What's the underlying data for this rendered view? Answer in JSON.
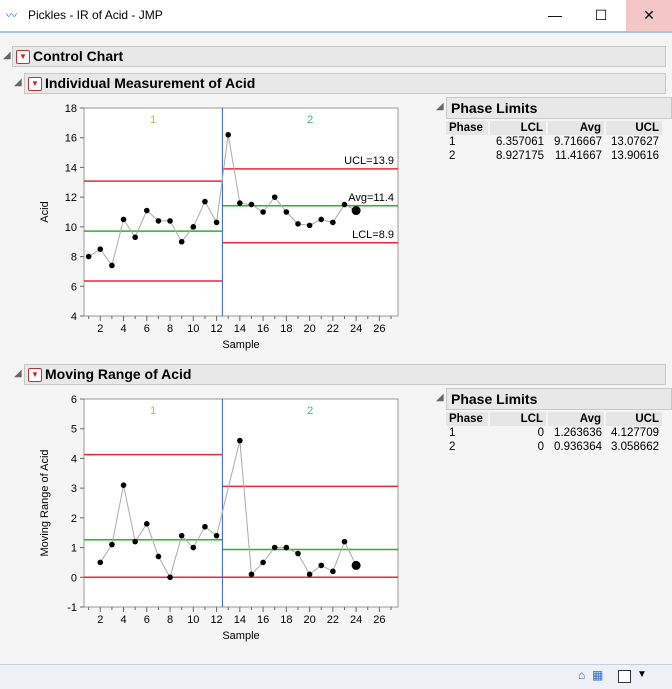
{
  "window": {
    "title": "Pickles - IR of Acid - JMP",
    "minimize": "—",
    "maximize": "☐",
    "close": "✕"
  },
  "outline": {
    "control_chart": "Control Chart",
    "individual": "Individual Measurement of Acid",
    "moving_range": "Moving Range of Acid"
  },
  "colors": {
    "limit": "#e8283c",
    "center": "#22b822",
    "phase_divider": "#2f5fd8",
    "phase1_label": "#9acd32",
    "phase2_label": "#3cb371"
  },
  "chart_data": [
    {
      "type": "line",
      "ylabel": "Acid",
      "xlabel": "Sample",
      "ylim": [
        4,
        18
      ],
      "yticks": [
        4,
        6,
        8,
        10,
        12,
        14,
        16,
        18
      ],
      "xlim": [
        0.6,
        27.6
      ],
      "xticks": [
        2,
        4,
        6,
        8,
        10,
        12,
        14,
        16,
        18,
        20,
        22,
        24,
        26
      ],
      "phase_labels": [
        "1",
        "2"
      ],
      "phase_boundary": 12.5,
      "x": [
        1,
        2,
        3,
        4,
        5,
        6,
        7,
        8,
        9,
        10,
        11,
        12,
        13,
        14,
        15,
        16,
        17,
        18,
        19,
        20,
        21,
        22,
        23,
        24
      ],
      "values": [
        8.0,
        8.5,
        7.4,
        10.5,
        9.3,
        11.1,
        10.4,
        10.4,
        9.0,
        10.0,
        11.7,
        10.3,
        16.2,
        11.6,
        11.5,
        11.0,
        12.0,
        11.0,
        10.2,
        10.1,
        10.5,
        10.3,
        11.5,
        11.1
      ],
      "limits": [
        {
          "lcl": 6.357061,
          "avg": 9.716667,
          "ucl": 13.07627
        },
        {
          "lcl": 8.927175,
          "avg": 11.41667,
          "ucl": 13.90616
        }
      ],
      "annotations": [
        "UCL=13.9",
        "Avg=11.4",
        "LCL=8.9"
      ]
    },
    {
      "type": "line",
      "ylabel": "Moving Range of Acid",
      "xlabel": "Sample",
      "ylim": [
        -1,
        6
      ],
      "yticks": [
        -1,
        0,
        1,
        2,
        3,
        4,
        5,
        6
      ],
      "xlim": [
        0.6,
        27.6
      ],
      "xticks": [
        2,
        4,
        6,
        8,
        10,
        12,
        14,
        16,
        18,
        20,
        22,
        24,
        26
      ],
      "phase_labels": [
        "1",
        "2"
      ],
      "phase_boundary": 12.5,
      "x": [
        2,
        3,
        4,
        5,
        6,
        7,
        8,
        9,
        10,
        11,
        12,
        14,
        15,
        16,
        17,
        18,
        19,
        20,
        21,
        22,
        23,
        24
      ],
      "values": [
        0.5,
        1.1,
        3.1,
        1.2,
        1.8,
        0.7,
        0.0,
        1.4,
        1.0,
        1.7,
        1.4,
        4.6,
        0.1,
        0.5,
        1.0,
        1.0,
        0.8,
        0.1,
        0.4,
        0.2,
        1.2,
        0.4
      ],
      "limits": [
        {
          "lcl": 0,
          "avg": 1.263636,
          "ucl": 4.127709
        },
        {
          "lcl": 0,
          "avg": 0.936364,
          "ucl": 3.058662
        }
      ],
      "annotations": []
    }
  ],
  "phase_limits": [
    {
      "title": "Phase Limits",
      "headers": [
        "Phase",
        "LCL",
        "Avg",
        "UCL"
      ],
      "rows": [
        [
          "1",
          "6.357061",
          "9.716667",
          "13.07627"
        ],
        [
          "2",
          "8.927175",
          "11.41667",
          "13.90616"
        ]
      ]
    },
    {
      "title": "Phase Limits",
      "headers": [
        "Phase",
        "LCL",
        "Avg",
        "UCL"
      ],
      "rows": [
        [
          "1",
          "0",
          "1.263636",
          "4.127709"
        ],
        [
          "2",
          "0",
          "0.936364",
          "3.058662"
        ]
      ]
    }
  ]
}
